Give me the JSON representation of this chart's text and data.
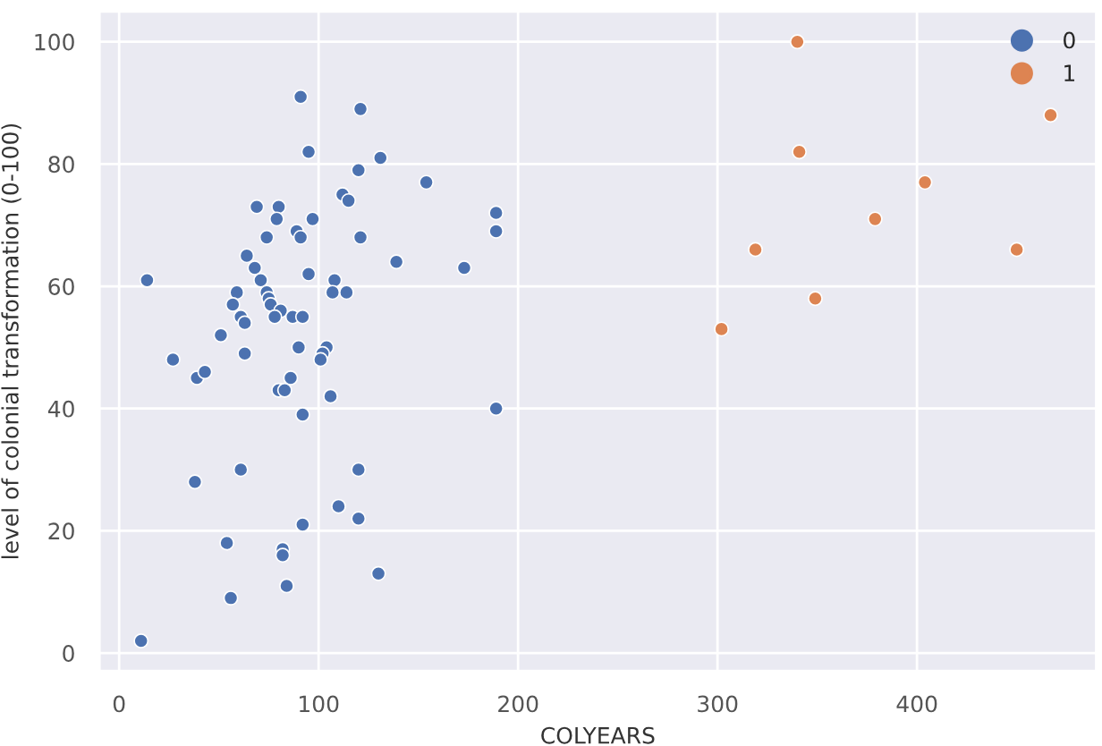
{
  "chart_data": {
    "type": "scatter",
    "xlabel": "COLYEARS",
    "ylabel": "level of colonial transformation (0-100)",
    "xlim": [
      -10,
      490
    ],
    "ylim": [
      -3,
      105
    ],
    "xticks": [
      0,
      100,
      200,
      300,
      400
    ],
    "yticks": [
      0,
      20,
      40,
      60,
      80,
      100
    ],
    "grid": true,
    "legend": "top right",
    "marker": "circle",
    "series": [
      {
        "name": "0",
        "color": "#4c72b0",
        "x": [
          91,
          121,
          95,
          131,
          120,
          154,
          112,
          115,
          69,
          80,
          79,
          97,
          189,
          189,
          89,
          91,
          74,
          121,
          139,
          173,
          64,
          68,
          14,
          95,
          71,
          108,
          74,
          59,
          107,
          114,
          75,
          57,
          76,
          81,
          61,
          78,
          87,
          92,
          63,
          51,
          63,
          27,
          39,
          43,
          90,
          104,
          102,
          101,
          80,
          83,
          86,
          106,
          92,
          189,
          61,
          38,
          120,
          110,
          92,
          120,
          54,
          82,
          82,
          130,
          84,
          56,
          11
        ],
        "values": [
          91,
          89,
          82,
          81,
          79,
          77,
          75,
          74,
          73,
          73,
          71,
          71,
          72,
          69,
          69,
          68,
          68,
          68,
          64,
          63,
          65,
          63,
          61,
          62,
          61,
          61,
          59,
          59,
          59,
          59,
          58,
          57,
          57,
          56,
          55,
          55,
          55,
          55,
          54,
          52,
          49,
          48,
          45,
          46,
          50,
          50,
          49,
          48,
          43,
          43,
          45,
          42,
          39,
          40,
          30,
          28,
          30,
          24,
          21,
          22,
          18,
          17,
          16,
          13,
          11,
          9,
          2
        ]
      },
      {
        "name": "1",
        "color": "#dd8452",
        "x": [
          340,
          467,
          341,
          404,
          379,
          319,
          450,
          349,
          302
        ],
        "values": [
          100,
          88,
          82,
          77,
          71,
          66,
          66,
          58,
          53
        ]
      }
    ]
  }
}
